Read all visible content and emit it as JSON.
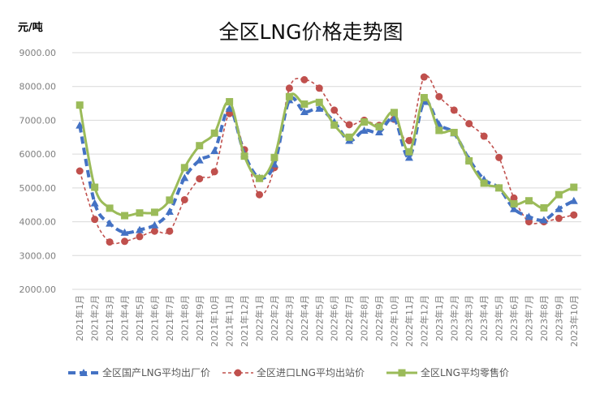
{
  "chart_data": {
    "type": "line",
    "title": "全区LNG价格走势图",
    "ylabel": "元/吨",
    "xlabel": "",
    "ylim": [
      2000,
      9000
    ],
    "ytick_step": 1000,
    "ytick_format": "fixed2",
    "grid": true,
    "legend_position": "bottom",
    "categories": [
      "2021年1月",
      "2021年2月",
      "2021年3月",
      "2021年4月",
      "2021年5月",
      "2021年6月",
      "2021年7月",
      "2021年8月",
      "2021年9月",
      "2021年10月",
      "2021年11月",
      "2021年12月",
      "2022年1月",
      "2022年2月",
      "2022年3月",
      "2022年4月",
      "2022年5月",
      "2022年6月",
      "2022年7月",
      "2022年8月",
      "2022年9月",
      "2022年10月",
      "2022年11月",
      "2022年12月",
      "2023年1月",
      "2023年2月",
      "2023年3月",
      "2023年4月",
      "2023年5月",
      "2023年6月",
      "2023年7月",
      "2023年8月",
      "2023年9月",
      "2023年10月"
    ],
    "series": [
      {
        "name": "全区国产LNG平均出厂价",
        "color": "#4472C4",
        "style": "dashed",
        "marker": "triangle",
        "values": [
          6850,
          4550,
          3950,
          3680,
          3760,
          3900,
          4300,
          5300,
          5820,
          6100,
          7350,
          6000,
          5300,
          5700,
          7600,
          7250,
          7350,
          6950,
          6400,
          6700,
          6650,
          7050,
          5900,
          7550,
          6880,
          6620,
          5850,
          5250,
          5000,
          4380,
          4150,
          4050,
          4380,
          4620
        ]
      },
      {
        "name": "全区进口LNG平均出站价",
        "color": "#C0504D",
        "style": "dashed",
        "marker": "circle",
        "values": [
          5500,
          4070,
          3400,
          3420,
          3560,
          3720,
          3720,
          4650,
          5270,
          5480,
          7200,
          6130,
          4800,
          5600,
          7950,
          8200,
          7950,
          7300,
          6870,
          7000,
          6850,
          7030,
          6400,
          8280,
          7700,
          7300,
          6900,
          6530,
          5900,
          4700,
          4000,
          4000,
          4100,
          4200
        ]
      },
      {
        "name": "全区LNG平均零售价",
        "color": "#9BBB59",
        "style": "solid",
        "marker": "square",
        "values": [
          7450,
          5020,
          4400,
          4180,
          4260,
          4280,
          4640,
          5600,
          6250,
          6620,
          7550,
          5940,
          5280,
          5900,
          7700,
          7480,
          7530,
          6860,
          6500,
          6950,
          6810,
          7230,
          6070,
          7670,
          6700,
          6640,
          5800,
          5140,
          5000,
          4530,
          4620,
          4410,
          4800,
          5020
        ]
      }
    ]
  }
}
